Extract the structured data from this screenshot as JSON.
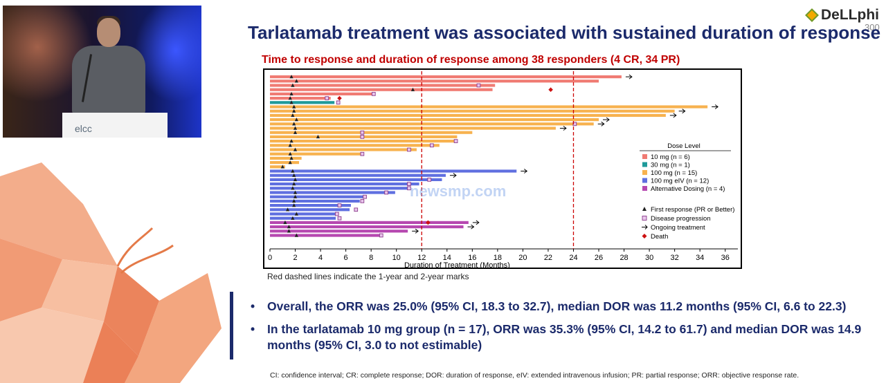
{
  "video": {
    "podium_text": "elcc"
  },
  "logo": {
    "name": "DeLLphi",
    "number": "300"
  },
  "slide": {
    "title": "Tarlatamab treatment was associated with sustained duration of response",
    "subtitle": "Time to response and duration of response among 38 responders (4 CR, 34 PR)",
    "note": "Red dashed lines indicate the 1-year and 2-year marks",
    "bullets": [
      "Overall, the ORR was 25.0% (95% CI, 18.3 to 32.7), median DOR was 11.2 months (95% CI, 6.6 to 22.3)",
      "In the tarlatamab 10 mg group (n = 17), ORR was 35.3% (95% CI, 14.2 to 61.7) and median DOR was 14.9 months (95% CI, 3.0 to not estimable)"
    ],
    "bullet_symbol": "•",
    "footnote": "CI: confidence interval; CR: complete response; DOR: duration of response, eIV: extended intravenous infusion; PR: partial response; ORR: objective response rate."
  },
  "watermark": "newsmp.com",
  "chart_data": {
    "type": "swimmer",
    "xlabel": "Duration of Treatment (Months)",
    "xlim": [
      0,
      37
    ],
    "xticks": [
      0,
      2,
      4,
      6,
      8,
      10,
      12,
      14,
      16,
      18,
      20,
      22,
      24,
      26,
      28,
      30,
      32,
      34,
      36
    ],
    "reference_lines": [
      12,
      24
    ],
    "reference_color": "#cc0000",
    "legend": {
      "title": "Dose Level",
      "groups": [
        {
          "label": "10 mg (n = 6)",
          "color": "#f07b73"
        },
        {
          "label": "30 mg (n = 1)",
          "color": "#1f9a9a"
        },
        {
          "label": "100 mg (n = 15)",
          "color": "#f7b24f"
        },
        {
          "label": "100 mg eIV (n = 12)",
          "color": "#5f6fe0"
        },
        {
          "label": "Alternative Dosing (n = 4)",
          "color": "#b648b0"
        }
      ],
      "symbols": [
        {
          "label": "First response (PR or Better)",
          "marker": "triangle"
        },
        {
          "label": "Disease progression",
          "marker": "square"
        },
        {
          "label": "Ongoing treatment",
          "marker": "arrow"
        },
        {
          "label": "Death",
          "marker": "diamond"
        }
      ]
    },
    "rows": [
      {
        "group": 0,
        "end": 27.8,
        "resp": 1.7,
        "prog": null,
        "ongoing": true,
        "death": null
      },
      {
        "group": 0,
        "end": 26.0,
        "resp": 2.1,
        "prog": null,
        "ongoing": false,
        "death": null
      },
      {
        "group": 0,
        "end": 17.8,
        "resp": 1.8,
        "prog": 16.5,
        "ongoing": false,
        "death": null
      },
      {
        "group": 0,
        "end": 17.6,
        "resp": 11.3,
        "prog": null,
        "ongoing": false,
        "death": 22.2
      },
      {
        "group": 0,
        "end": 8.3,
        "resp": 1.7,
        "prog": 8.2,
        "ongoing": false,
        "death": null
      },
      {
        "group": 0,
        "end": 4.8,
        "resp": 1.6,
        "prog": 4.5,
        "ongoing": false,
        "death": 5.5
      },
      {
        "group": 1,
        "end": 5.1,
        "resp": 1.7,
        "prog": 5.4,
        "ongoing": false,
        "death": null
      },
      {
        "group": 2,
        "end": 34.6,
        "resp": 1.9,
        "prog": null,
        "ongoing": true,
        "death": null
      },
      {
        "group": 2,
        "end": 32.0,
        "resp": 1.9,
        "prog": null,
        "ongoing": true,
        "death": null
      },
      {
        "group": 2,
        "end": 31.3,
        "resp": 1.8,
        "prog": null,
        "ongoing": true,
        "death": null
      },
      {
        "group": 2,
        "end": 26.0,
        "resp": 2.1,
        "prog": null,
        "ongoing": true,
        "death": null
      },
      {
        "group": 2,
        "end": 25.6,
        "resp": 1.9,
        "prog": 24.1,
        "ongoing": true,
        "death": null
      },
      {
        "group": 2,
        "end": 22.6,
        "resp": 2.0,
        "prog": null,
        "ongoing": true,
        "death": null
      },
      {
        "group": 2,
        "end": 16.0,
        "resp": 2.0,
        "prog": 7.3,
        "ongoing": false,
        "death": null
      },
      {
        "group": 2,
        "end": 14.8,
        "resp": 3.8,
        "prog": 7.3,
        "ongoing": false,
        "death": null
      },
      {
        "group": 2,
        "end": 14.6,
        "resp": 1.7,
        "prog": 14.7,
        "ongoing": false,
        "death": null
      },
      {
        "group": 2,
        "end": 13.4,
        "resp": 1.6,
        "prog": 12.8,
        "ongoing": false,
        "death": null
      },
      {
        "group": 2,
        "end": 11.6,
        "resp": 2.0,
        "prog": 11.0,
        "ongoing": false,
        "death": null
      },
      {
        "group": 2,
        "end": 7.2,
        "resp": 1.6,
        "prog": 7.3,
        "ongoing": false,
        "death": null
      },
      {
        "group": 2,
        "end": 2.5,
        "resp": 1.7,
        "prog": null,
        "ongoing": false,
        "death": null
      },
      {
        "group": 2,
        "end": 2.3,
        "resp": 1.6,
        "prog": null,
        "ongoing": false,
        "death": null
      },
      {
        "group": 2,
        "end": 1.2,
        "resp": 1.0,
        "prog": null,
        "ongoing": false,
        "death": null
      },
      {
        "group": 3,
        "end": 19.5,
        "resp": 1.8,
        "prog": null,
        "ongoing": true,
        "death": null
      },
      {
        "group": 3,
        "end": 13.9,
        "resp": 1.9,
        "prog": null,
        "ongoing": true,
        "death": null
      },
      {
        "group": 3,
        "end": 13.6,
        "resp": 2.0,
        "prog": 12.6,
        "ongoing": false,
        "death": null
      },
      {
        "group": 3,
        "end": 11.8,
        "resp": 1.9,
        "prog": 11.0,
        "ongoing": false,
        "death": null
      },
      {
        "group": 3,
        "end": 11.1,
        "resp": 1.8,
        "prog": 11.0,
        "ongoing": false,
        "death": null
      },
      {
        "group": 3,
        "end": 9.9,
        "resp": 2.0,
        "prog": 9.2,
        "ongoing": false,
        "death": null
      },
      {
        "group": 3,
        "end": 7.4,
        "resp": 2.0,
        "prog": 7.5,
        "ongoing": false,
        "death": null
      },
      {
        "group": 3,
        "end": 7.1,
        "resp": 1.9,
        "prog": 7.3,
        "ongoing": false,
        "death": null
      },
      {
        "group": 3,
        "end": 6.4,
        "resp": 1.9,
        "prog": 5.5,
        "ongoing": false,
        "death": null
      },
      {
        "group": 3,
        "end": 6.3,
        "resp": 1.4,
        "prog": 6.8,
        "ongoing": false,
        "death": null
      },
      {
        "group": 3,
        "end": 5.3,
        "resp": 2.1,
        "prog": 5.3,
        "ongoing": false,
        "death": null
      },
      {
        "group": 3,
        "end": 5.2,
        "resp": 1.8,
        "prog": 5.5,
        "ongoing": false,
        "death": null
      },
      {
        "group": 4,
        "end": 15.7,
        "resp": 1.2,
        "prog": null,
        "ongoing": true,
        "death": 12.5
      },
      {
        "group": 4,
        "end": 15.3,
        "resp": 1.5,
        "prog": null,
        "ongoing": true,
        "death": null
      },
      {
        "group": 4,
        "end": 10.9,
        "resp": 1.5,
        "prog": null,
        "ongoing": true,
        "death": null
      },
      {
        "group": 4,
        "end": 8.8,
        "resp": 2.1,
        "prog": 8.8,
        "ongoing": false,
        "death": null
      }
    ]
  }
}
